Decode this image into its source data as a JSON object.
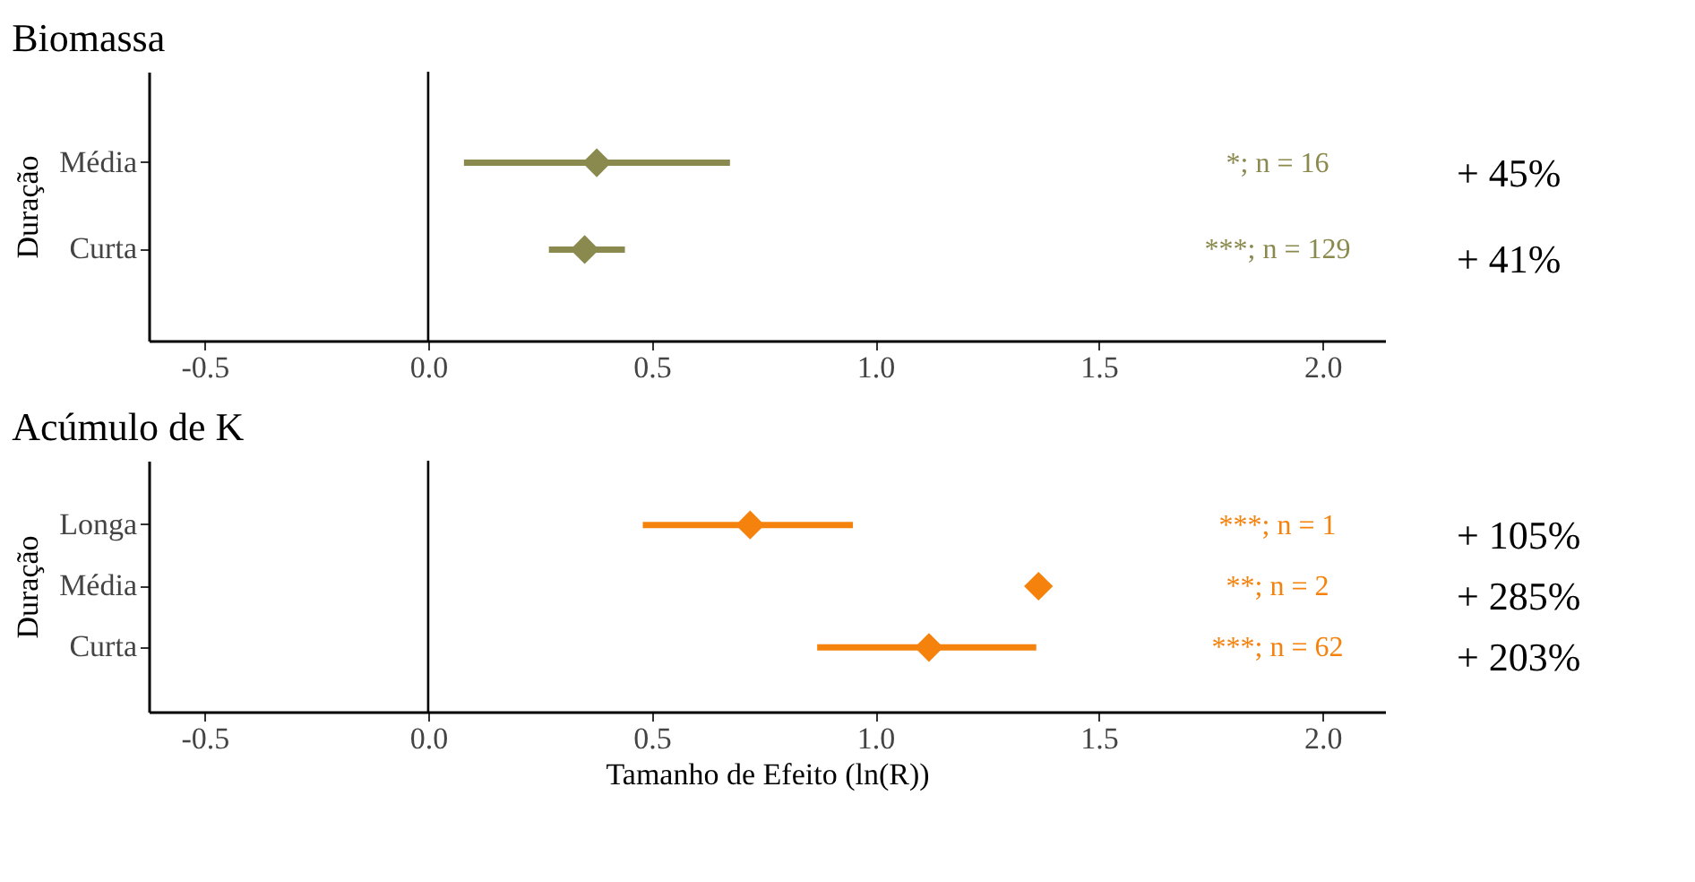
{
  "chart_data": [
    {
      "type": "scatter",
      "title": "Biomassa",
      "ylabel": "Duração",
      "orientation": "horizontal",
      "marker": "diamond",
      "categories": [
        "Média",
        "Curta"
      ],
      "series": [
        {
          "color": "#8b8a4e",
          "values": [
            0.377,
            0.35
          ],
          "errors": [
            [
              0.08,
              0.675
            ],
            [
              0.27,
              0.44
            ]
          ]
        }
      ],
      "xlim": [
        -0.625,
        2.14
      ],
      "xticks": [
        {
          "value": -0.5,
          "label": "-0.5"
        },
        {
          "value": 0,
          "label": "0.0"
        },
        {
          "value": 0.5,
          "label": "0.5"
        },
        {
          "value": 1,
          "label": "1.0"
        },
        {
          "value": 1.5,
          "label": "1.5"
        },
        {
          "value": 2,
          "label": "2.0"
        }
      ],
      "ref_lines": [
        {
          "axis": "x",
          "value": 0,
          "color": "#000000"
        }
      ],
      "annotations": [
        "*; n = 16",
        "***; n = 129",
        "+ 45%",
        "+ 41%"
      ]
    },
    {
      "type": "scatter",
      "title": "Acúmulo de K",
      "ylabel": "Duração",
      "xlabel": "Tamanho de Efeito (ln(R))",
      "orientation": "horizontal",
      "marker": "diamond",
      "categories": [
        "Longa",
        "Média",
        "Curta"
      ],
      "series": [
        {
          "color": "#f5820d",
          "values": [
            0.72,
            1.365,
            1.12
          ],
          "errors": [
            [
              0.48,
              0.95
            ],
            null,
            [
              0.87,
              1.36
            ]
          ]
        }
      ],
      "xlim": [
        -0.625,
        2.14
      ],
      "xticks": [
        {
          "value": -0.5,
          "label": "-0.5"
        },
        {
          "value": 0,
          "label": "0.0"
        },
        {
          "value": 0.5,
          "label": "0.5"
        },
        {
          "value": 1,
          "label": "1.0"
        },
        {
          "value": 1.5,
          "label": "1.5"
        },
        {
          "value": 2,
          "label": "2.0"
        }
      ],
      "ref_lines": [
        {
          "axis": "x",
          "value": 0,
          "color": "#000000"
        }
      ],
      "annotations": [
        "***; n = 1",
        "**; n = 2",
        "***; n = 62",
        "+ 105%",
        "+ 285%",
        "+ 203%"
      ]
    }
  ]
}
